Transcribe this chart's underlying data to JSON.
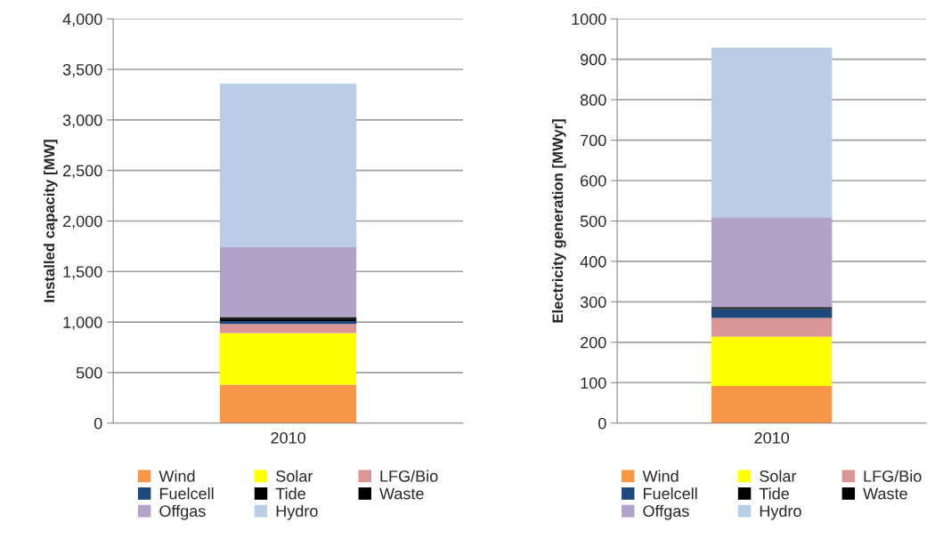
{
  "chart_data": [
    {
      "type": "bar",
      "stacked": true,
      "ylabel": "Installed capacity [MW]",
      "categories": [
        "2010"
      ],
      "ylim": [
        0,
        4000
      ],
      "yticks": [
        {
          "value": 0,
          "label": "0"
        },
        {
          "value": 500,
          "label": "500"
        },
        {
          "value": 1000,
          "label": "1,000"
        },
        {
          "value": 1500,
          "label": "1,500"
        },
        {
          "value": 2000,
          "label": "2,000"
        },
        {
          "value": 2500,
          "label": "2,500"
        },
        {
          "value": 3000,
          "label": "3,000"
        },
        {
          "value": 3500,
          "label": "3,500"
        },
        {
          "value": 4000,
          "label": "4,000"
        }
      ],
      "grid": "y",
      "legend": "bottom",
      "series": [
        {
          "name": "Wind",
          "color": "#f79646",
          "values": [
            380
          ]
        },
        {
          "name": "Solar",
          "color": "#ffff00",
          "values": [
            510
          ]
        },
        {
          "name": "LFG/Bio",
          "color": "#d99694",
          "values": [
            90
          ]
        },
        {
          "name": "Fuelcell",
          "color": "#1f497d",
          "values": [
            30
          ]
        },
        {
          "name": "Tide",
          "color": "#000000",
          "values": [
            20
          ]
        },
        {
          "name": "Waste",
          "color": "#000000",
          "values": [
            20
          ]
        },
        {
          "name": "Offgas",
          "color": "#b3a2c7",
          "values": [
            690
          ]
        },
        {
          "name": "Hydro",
          "color": "#b9cde5",
          "values": [
            1620
          ]
        }
      ]
    },
    {
      "type": "bar",
      "stacked": true,
      "ylabel": "Electricity generation [MWyr]",
      "categories": [
        "2010"
      ],
      "ylim": [
        0,
        1000
      ],
      "yticks": [
        0,
        100,
        200,
        300,
        400,
        500,
        600,
        700,
        800,
        900,
        1000
      ],
      "grid": "y",
      "legend": "bottom",
      "series": [
        {
          "name": "Wind",
          "color": "#f79646",
          "values": [
            92
          ]
        },
        {
          "name": "Solar",
          "color": "#ffff00",
          "values": [
            122
          ]
        },
        {
          "name": "LFG/Bio",
          "color": "#d99694",
          "values": [
            46
          ]
        },
        {
          "name": "Fuelcell",
          "color": "#1f497d",
          "values": [
            22
          ]
        },
        {
          "name": "Tide",
          "color": "#000000",
          "values": [
            3
          ]
        },
        {
          "name": "Waste",
          "color": "#000000",
          "values": [
            2
          ]
        },
        {
          "name": "Offgas",
          "color": "#b3a2c7",
          "values": [
            222
          ]
        },
        {
          "name": "Hydro",
          "color": "#b9cde5",
          "values": [
            420
          ]
        }
      ]
    }
  ]
}
